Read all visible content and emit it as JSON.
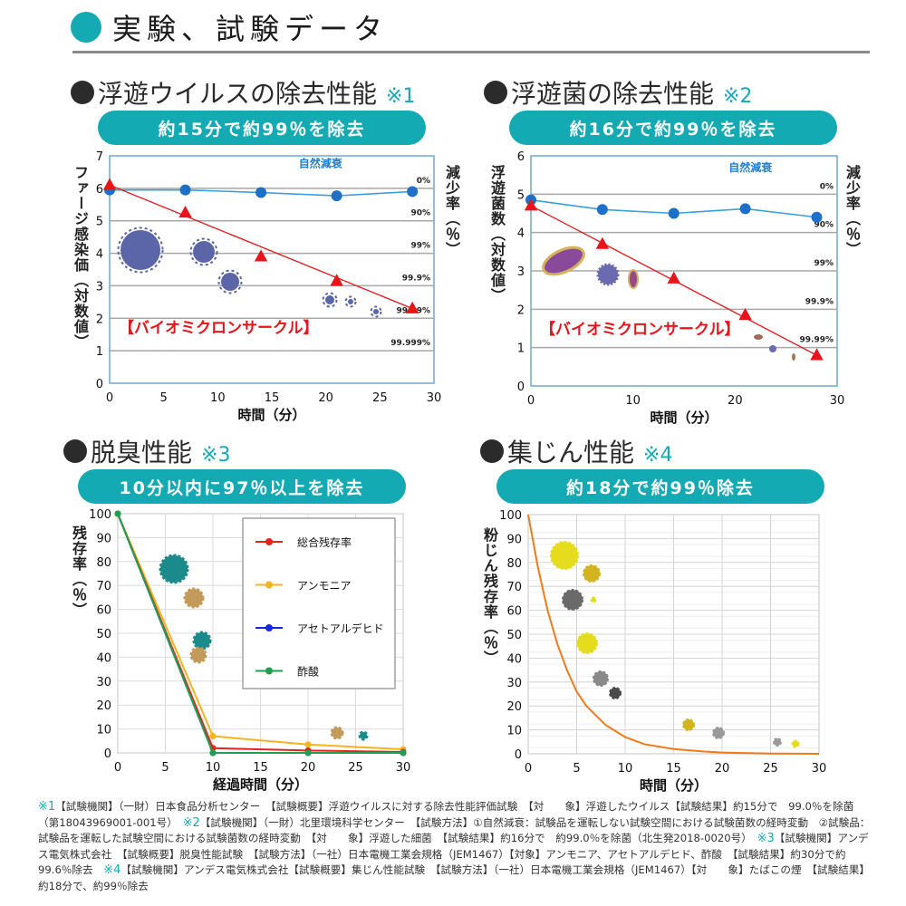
{
  "header": {
    "title": "実験、試験データ"
  },
  "colors": {
    "accent": "#14aab4",
    "red": "#e8141a",
    "blue_marker": "#1e6fc8",
    "blue_line": "#3aa0dc",
    "orange": "#f07a1a"
  },
  "panels": [
    {
      "title": "浮遊ウイルスの除去性能",
      "note": "※1",
      "banner": "約15分で約99％を除去"
    },
    {
      "title": "浮遊菌の除去性能",
      "note": "※2",
      "banner": "約16分で約99％を除去"
    },
    {
      "title": "脱臭性能",
      "note": "※3",
      "banner": "10分以内に97％以上を除去"
    },
    {
      "title": "集じん性能",
      "note": "※4",
      "banner": "約18分で約99％除去"
    }
  ],
  "chart_data": [
    {
      "type": "line",
      "title": "浮遊ウイルスの除去性能",
      "xlabel": "時間（分）",
      "ylabel": "ファージ感染価（対数値）",
      "y2label": "減少率（％）",
      "xlim": [
        0,
        30
      ],
      "ylim": [
        0,
        7
      ],
      "xticks": [
        "0",
        "5",
        "10",
        "15",
        "20",
        "25",
        "30"
      ],
      "yticks": [
        "0",
        "1",
        "2",
        "3",
        "4",
        "5",
        "6",
        "7"
      ],
      "reduction_labels": [
        "0%",
        "90%",
        "99%",
        "99.9%",
        "99.99%",
        "99.999%"
      ],
      "grid": true,
      "x": [
        0,
        7,
        14,
        21,
        28
      ],
      "series": [
        {
          "name": "自然減衰",
          "marker": "circle",
          "values": [
            5.95,
            5.95,
            5.87,
            5.77,
            5.9
          ]
        },
        {
          "name": "【バイオミクロンサークル】",
          "marker": "triangle",
          "values": [
            6.1,
            5.25,
            3.9,
            3.15,
            2.3
          ]
        }
      ]
    },
    {
      "type": "line",
      "title": "浮遊菌の除去性能",
      "xlabel": "時間（分）",
      "ylabel": "浮遊菌数（対数値）",
      "y2label": "減少率（％）",
      "xlim": [
        0,
        30
      ],
      "ylim": [
        0,
        6
      ],
      "xticks": [
        "0",
        "10",
        "20",
        "30"
      ],
      "yticks": [
        "0",
        "1",
        "2",
        "3",
        "4",
        "5",
        "6"
      ],
      "reduction_labels": [
        "0%",
        "90%",
        "99%",
        "99.9%",
        "99.99%"
      ],
      "grid": true,
      "x": [
        0,
        7,
        14,
        21,
        28
      ],
      "series": [
        {
          "name": "自然減衰",
          "marker": "circle",
          "values": [
            4.85,
            4.6,
            4.5,
            4.62,
            4.4
          ]
        },
        {
          "name": "【バイオミクロンサークル】",
          "marker": "triangle",
          "values": [
            4.7,
            3.7,
            2.8,
            1.85,
            0.8
          ]
        }
      ]
    },
    {
      "type": "line",
      "title": "脱臭性能",
      "xlabel": "経過時間（分）",
      "ylabel": "残存率（％）",
      "xlim": [
        0,
        30
      ],
      "ylim": [
        0,
        100
      ],
      "xticks": [
        "0",
        "5",
        "10",
        "15",
        "20",
        "25",
        "30"
      ],
      "yticks": [
        "0",
        "10",
        "20",
        "30",
        "40",
        "50",
        "60",
        "70",
        "80",
        "90",
        "100"
      ],
      "grid": true,
      "legend": "top-right",
      "x": [
        0,
        10,
        20,
        30
      ],
      "series": [
        {
          "name": "総合残存率",
          "color": "#e8231e",
          "values": [
            100,
            2,
            1,
            0.4
          ]
        },
        {
          "name": "アンモニア",
          "color": "#f5b41e",
          "values": [
            100,
            7,
            3.5,
            1.5
          ]
        },
        {
          "name": "アセトアルデヒド",
          "color": "#1428e6",
          "values": [
            100,
            0,
            0,
            0
          ]
        },
        {
          "name": "酢酸",
          "color": "#1ea050",
          "values": [
            100,
            0,
            0,
            0
          ]
        }
      ]
    },
    {
      "type": "line",
      "title": "集じん性能",
      "xlabel": "時間（分）",
      "ylabel": "粉じん残存率（％）",
      "xlim": [
        0,
        30
      ],
      "ylim": [
        0,
        100
      ],
      "xticks": [
        "0",
        "5",
        "10",
        "15",
        "20",
        "25",
        "30"
      ],
      "yticks": [
        "0",
        "10",
        "20",
        "30",
        "40",
        "50",
        "60",
        "70",
        "80",
        "90",
        "100"
      ],
      "grid": true,
      "x": [
        0,
        1,
        2,
        3,
        4,
        5,
        6,
        8,
        10,
        12,
        15,
        18,
        20,
        25,
        30
      ],
      "series": [
        {
          "name": "粉じん残存率",
          "color": "#f07a1a",
          "values": [
            100,
            78,
            60,
            46,
            35,
            26,
            20,
            12,
            7,
            4,
            2,
            1,
            0.5,
            0.1,
            0
          ]
        }
      ]
    }
  ],
  "footnotes": [
    {
      "mark": "※1",
      "text": "【試験機関】（一財）日本食品分析センター　【試験概要】浮遊ウイルスに対する除去性能評価試験　【対　　象】浮遊したウイルス【試験結果】約15分で　99.0％を除菌（第18043969001-001号）　"
    },
    {
      "mark": "※2",
      "text": "【試験機関】（一財）北里環境科学センター　【試験方法】①自然減衰：試験品を運転しない試験空間における試験菌数の経時変動　②試験品：試験品を運転した試験空間における試験菌数の経時変動　【対　　象】浮遊した細菌　【試験結果】約16分で　約99.0％を除菌（北生発2018-0020号）　"
    },
    {
      "mark": "※3",
      "text": "【試験機関】アンデス電気株式会社　【試験概要】脱臭性能試験　【試験方法】（一社）日本電機工業会規格（JEM1467）【対象】アンモニア、アセトアルデヒド、酢酸　【試験結果】約30分で約99.6％除去　"
    },
    {
      "mark": "※4",
      "text": "【試験機関】アンデス電気株式会社【試験概要】集じん性能試験　【試験方法】（一社）日本電機工業会規格（JEM1467）【対　　象】たばこの煙　【試験結果】約18分で、約99％除去"
    }
  ]
}
